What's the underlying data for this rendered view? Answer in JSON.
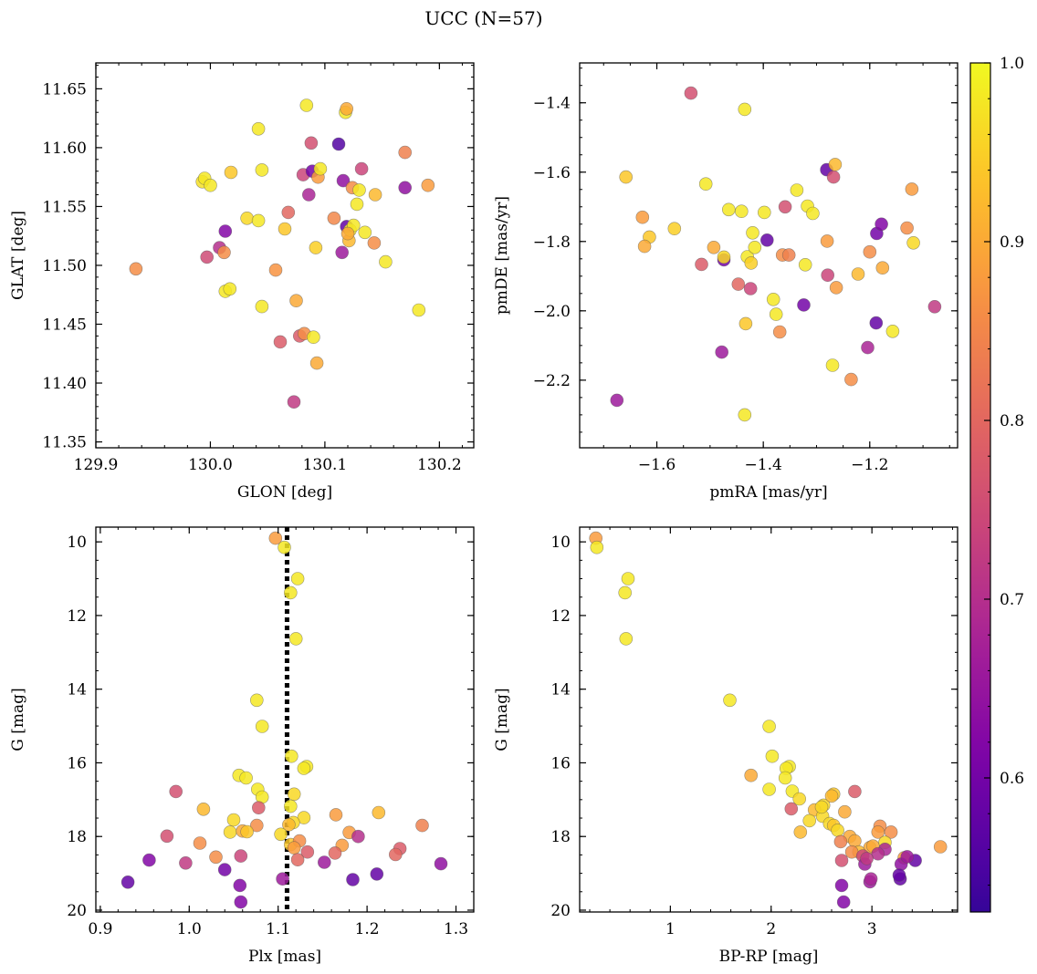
{
  "figure": {
    "title": "UCC (N=57)"
  },
  "chart_data": [
    {
      "type": "scatter",
      "xlabel": "GLON [deg]",
      "ylabel": "GLAT [deg]",
      "xlim": [
        129.9,
        130.23
      ],
      "ylim": [
        11.345,
        11.672
      ],
      "xticks": [
        129.9,
        130.0,
        130.1,
        130.2
      ],
      "yticks": [
        11.35,
        11.4,
        11.45,
        11.5,
        11.55,
        11.6,
        11.65
      ],
      "xtick_labels": [
        "129.9",
        "130.0",
        "130.1",
        "130.2"
      ],
      "ytick_labels": [
        "11.35",
        "11.40",
        "11.45",
        "11.50",
        "11.55",
        "11.60",
        "11.65"
      ],
      "xminor": 0.02,
      "yminor": 0.01,
      "invert_y": false,
      "points": [
        [
          129.935,
          11.497,
          0.86
        ],
        [
          129.993,
          11.571,
          0.97
        ],
        [
          129.995,
          11.574,
          0.98
        ],
        [
          130.0,
          11.568,
          0.98
        ],
        [
          129.997,
          11.507,
          0.75
        ],
        [
          130.008,
          11.515,
          0.7
        ],
        [
          130.013,
          11.529,
          0.62
        ],
        [
          130.012,
          11.511,
          0.86
        ],
        [
          130.013,
          11.478,
          0.98
        ],
        [
          130.017,
          11.48,
          0.98
        ],
        [
          130.018,
          11.579,
          0.94
        ],
        [
          130.032,
          11.54,
          0.96
        ],
        [
          130.042,
          11.538,
          0.98
        ],
        [
          130.042,
          11.616,
          0.98
        ],
        [
          130.045,
          11.581,
          0.98
        ],
        [
          130.045,
          11.465,
          0.98
        ],
        [
          130.057,
          11.496,
          0.87
        ],
        [
          130.061,
          11.435,
          0.78
        ],
        [
          130.065,
          11.531,
          0.94
        ],
        [
          130.068,
          11.545,
          0.8
        ],
        [
          130.073,
          11.384,
          0.72
        ],
        [
          130.075,
          11.47,
          0.9
        ],
        [
          130.078,
          11.44,
          0.78
        ],
        [
          130.082,
          11.442,
          0.86
        ],
        [
          130.081,
          11.577,
          0.74
        ],
        [
          130.084,
          11.636,
          0.98
        ],
        [
          130.086,
          11.56,
          0.68
        ],
        [
          130.088,
          11.604,
          0.76
        ],
        [
          130.089,
          11.58,
          0.6
        ],
        [
          130.09,
          11.439,
          0.98
        ],
        [
          130.092,
          11.515,
          0.95
        ],
        [
          130.093,
          11.417,
          0.9
        ],
        [
          130.094,
          11.575,
          0.88
        ],
        [
          130.096,
          11.582,
          0.98
        ],
        [
          130.112,
          11.603,
          0.56
        ],
        [
          130.115,
          11.511,
          0.66
        ],
        [
          130.116,
          11.572,
          0.64
        ],
        [
          130.118,
          11.63,
          0.98
        ],
        [
          130.119,
          11.633,
          0.9
        ],
        [
          130.119,
          11.533,
          0.58
        ],
        [
          130.121,
          11.521,
          0.92
        ],
        [
          130.122,
          11.53,
          0.98
        ],
        [
          130.124,
          11.566,
          0.86
        ],
        [
          130.125,
          11.534,
          0.98
        ],
        [
          130.128,
          11.552,
          0.98
        ],
        [
          130.13,
          11.564,
          0.98
        ],
        [
          130.132,
          11.582,
          0.74
        ],
        [
          130.135,
          11.528,
          0.98
        ],
        [
          130.143,
          11.519,
          0.86
        ],
        [
          130.144,
          11.56,
          0.92
        ],
        [
          130.153,
          11.503,
          0.98
        ],
        [
          130.17,
          11.566,
          0.64
        ],
        [
          130.17,
          11.596,
          0.84
        ],
        [
          130.182,
          11.462,
          0.98
        ],
        [
          130.19,
          11.568,
          0.88
        ],
        [
          130.12,
          11.527,
          0.9
        ],
        [
          130.108,
          11.54,
          0.85
        ]
      ]
    },
    {
      "type": "scatter",
      "xlabel": "pmRA [mas/yr]",
      "ylabel": "pmDE [mas/yr]",
      "xlim": [
        -1.745,
        -1.035
      ],
      "ylim": [
        -2.395,
        -1.285
      ],
      "xticks": [
        -1.6,
        -1.4,
        -1.2
      ],
      "yticks": [
        -2.2,
        -2.0,
        -1.8,
        -1.6,
        -1.4
      ],
      "xtick_labels": [
        "−1.6",
        "−1.4",
        "−1.2"
      ],
      "ytick_labels": [
        "−2.2",
        "−2.0",
        "−1.8",
        "−1.6",
        "−1.4"
      ],
      "xminor": 0.05,
      "yminor": 0.05,
      "invert_y": false,
      "points": [
        [
          -1.536,
          -1.372,
          0.76
        ],
        [
          -1.435,
          -1.419,
          0.98
        ],
        [
          -1.658,
          -1.614,
          0.94
        ],
        [
          -1.508,
          -1.634,
          0.98
        ],
        [
          -1.627,
          -1.73,
          0.88
        ],
        [
          -1.614,
          -1.787,
          0.94
        ],
        [
          -1.623,
          -1.814,
          0.9
        ],
        [
          -1.567,
          -1.763,
          0.95
        ],
        [
          -1.516,
          -1.866,
          0.78
        ],
        [
          -1.493,
          -1.817,
          0.9
        ],
        [
          -1.478,
          -2.119,
          0.66
        ],
        [
          -1.474,
          -1.853,
          0.6
        ],
        [
          -1.474,
          -1.845,
          0.96
        ],
        [
          -1.465,
          -1.708,
          0.98
        ],
        [
          -1.441,
          -1.713,
          0.98
        ],
        [
          -1.447,
          -1.923,
          0.8
        ],
        [
          -1.43,
          -1.844,
          0.98
        ],
        [
          -1.423,
          -1.862,
          0.95
        ],
        [
          -1.42,
          -1.775,
          0.98
        ],
        [
          -1.416,
          -1.817,
          0.98
        ],
        [
          -1.433,
          -2.037,
          0.94
        ],
        [
          -1.435,
          -2.3,
          0.98
        ],
        [
          -1.424,
          -1.936,
          0.74
        ],
        [
          -1.398,
          -1.716,
          0.98
        ],
        [
          -1.393,
          -1.796,
          0.58
        ],
        [
          -1.381,
          -1.967,
          0.98
        ],
        [
          -1.376,
          -2.01,
          0.98
        ],
        [
          -1.369,
          -2.061,
          0.86
        ],
        [
          -1.364,
          -1.839,
          0.86
        ],
        [
          -1.359,
          -1.7,
          0.76
        ],
        [
          -1.352,
          -1.839,
          0.84
        ],
        [
          -1.337,
          -1.652,
          0.98
        ],
        [
          -1.324,
          -1.983,
          0.6
        ],
        [
          -1.321,
          -1.867,
          0.98
        ],
        [
          -1.317,
          -1.698,
          0.98
        ],
        [
          -1.307,
          -1.719,
          0.98
        ],
        [
          -1.281,
          -1.593,
          0.58
        ],
        [
          -1.279,
          -1.897,
          0.74
        ],
        [
          -1.28,
          -1.799,
          0.88
        ],
        [
          -1.27,
          -2.157,
          0.98
        ],
        [
          -1.268,
          -1.614,
          0.76
        ],
        [
          -1.265,
          -1.578,
          0.92
        ],
        [
          -1.263,
          -1.933,
          0.88
        ],
        [
          -1.235,
          -2.198,
          0.86
        ],
        [
          -1.222,
          -1.894,
          0.92
        ],
        [
          -1.204,
          -2.106,
          0.68
        ],
        [
          -1.2,
          -1.83,
          0.86
        ],
        [
          -1.187,
          -1.777,
          0.6
        ],
        [
          -1.188,
          -2.035,
          0.58
        ],
        [
          -1.178,
          -1.75,
          0.62
        ],
        [
          -1.176,
          -1.876,
          0.9
        ],
        [
          -1.157,
          -2.059,
          0.98
        ],
        [
          -1.13,
          -1.761,
          0.86
        ],
        [
          -1.121,
          -1.649,
          0.88
        ],
        [
          -1.118,
          -1.804,
          0.96
        ],
        [
          -1.078,
          -1.988,
          0.72
        ],
        [
          -1.675,
          -2.258,
          0.66
        ]
      ]
    },
    {
      "type": "scatter",
      "xlabel": "Plx [mas]",
      "ylabel": "G [mag]",
      "xlim": [
        0.895,
        1.32
      ],
      "ylim": [
        9.6,
        20.05
      ],
      "xticks": [
        0.9,
        1.0,
        1.1,
        1.2,
        1.3
      ],
      "yticks": [
        10,
        12,
        14,
        16,
        18,
        20
      ],
      "xtick_labels": [
        "0.9",
        "1.0",
        "1.1",
        "1.2",
        "1.3"
      ],
      "ytick_labels": [
        "10",
        "12",
        "14",
        "16",
        "18",
        "20"
      ],
      "xminor": 0.02,
      "yminor": 0.5,
      "invert_y": true,
      "vline": 1.11,
      "points": [
        [
          1.097,
          9.9,
          0.88
        ],
        [
          1.107,
          10.15,
          0.98
        ],
        [
          1.122,
          11.0,
          0.98
        ],
        [
          1.114,
          11.38,
          0.98
        ],
        [
          1.12,
          12.63,
          0.98
        ],
        [
          1.076,
          14.3,
          0.98
        ],
        [
          1.082,
          15.01,
          0.98
        ],
        [
          1.115,
          15.82,
          0.98
        ],
        [
          1.132,
          16.1,
          0.98
        ],
        [
          1.129,
          16.15,
          0.98
        ],
        [
          1.056,
          16.34,
          0.98
        ],
        [
          1.064,
          16.41,
          0.98
        ],
        [
          1.077,
          16.72,
          0.98
        ],
        [
          1.082,
          16.93,
          0.98
        ],
        [
          1.118,
          16.85,
          0.96
        ],
        [
          0.985,
          16.78,
          0.76
        ],
        [
          1.016,
          17.26,
          0.92
        ],
        [
          1.078,
          17.22,
          0.78
        ],
        [
          1.114,
          17.18,
          0.98
        ],
        [
          1.165,
          17.41,
          0.88
        ],
        [
          1.213,
          17.35,
          0.92
        ],
        [
          1.05,
          17.55,
          0.96
        ],
        [
          1.129,
          17.49,
          0.96
        ],
        [
          1.117,
          17.62,
          0.96
        ],
        [
          1.112,
          17.68,
          0.92
        ],
        [
          1.262,
          17.7,
          0.84
        ],
        [
          1.076,
          17.7,
          0.86
        ],
        [
          1.046,
          17.88,
          0.96
        ],
        [
          1.06,
          17.85,
          0.9
        ],
        [
          1.065,
          17.87,
          0.94
        ],
        [
          1.103,
          17.94,
          0.96
        ],
        [
          1.18,
          17.89,
          0.88
        ],
        [
          0.975,
          17.99,
          0.76
        ],
        [
          1.012,
          18.18,
          0.86
        ],
        [
          1.114,
          18.22,
          0.94
        ],
        [
          1.124,
          18.12,
          0.86
        ],
        [
          1.118,
          18.31,
          0.88
        ],
        [
          1.172,
          18.24,
          0.88
        ],
        [
          1.133,
          18.42,
          0.78
        ],
        [
          1.164,
          18.45,
          0.8
        ],
        [
          1.03,
          18.56,
          0.86
        ],
        [
          1.058,
          18.53,
          0.74
        ],
        [
          1.122,
          18.63,
          0.8
        ],
        [
          1.237,
          18.33,
          0.78
        ],
        [
          1.232,
          18.49,
          0.8
        ],
        [
          0.955,
          18.64,
          0.62
        ],
        [
          0.996,
          18.72,
          0.72
        ],
        [
          1.283,
          18.74,
          0.64
        ],
        [
          1.211,
          19.02,
          0.58
        ],
        [
          1.184,
          19.17,
          0.58
        ],
        [
          1.105,
          19.15,
          0.66
        ],
        [
          0.931,
          19.24,
          0.58
        ],
        [
          1.057,
          19.33,
          0.62
        ],
        [
          1.058,
          19.78,
          0.62
        ],
        [
          1.152,
          18.7,
          0.66
        ],
        [
          1.04,
          18.9,
          0.6
        ],
        [
          1.19,
          18.0,
          0.7
        ]
      ]
    },
    {
      "type": "scatter",
      "xlabel": "BP-RP [mag]",
      "ylabel": "G [mag]",
      "xlim": [
        0.1,
        3.85
      ],
      "ylim": [
        9.6,
        20.05
      ],
      "xticks": [
        1,
        2,
        3
      ],
      "yticks": [
        10,
        12,
        14,
        16,
        18,
        20
      ],
      "xtick_labels": [
        "1",
        "2",
        "3"
      ],
      "ytick_labels": [
        "10",
        "12",
        "14",
        "16",
        "18",
        "20"
      ],
      "xminor": 0.2,
      "yminor": 0.5,
      "invert_y": true,
      "points": [
        [
          0.26,
          9.9,
          0.88
        ],
        [
          0.27,
          10.15,
          0.98
        ],
        [
          0.58,
          11.0,
          0.98
        ],
        [
          0.55,
          11.38,
          0.98
        ],
        [
          0.56,
          12.63,
          0.98
        ],
        [
          1.59,
          14.3,
          0.98
        ],
        [
          1.98,
          15.01,
          0.98
        ],
        [
          2.01,
          15.82,
          0.98
        ],
        [
          2.18,
          16.1,
          0.98
        ],
        [
          2.15,
          16.15,
          0.98
        ],
        [
          1.8,
          16.34,
          0.9
        ],
        [
          2.14,
          16.41,
          0.98
        ],
        [
          2.62,
          16.85,
          0.94
        ],
        [
          2.21,
          16.77,
          0.98
        ],
        [
          1.98,
          16.72,
          0.98
        ],
        [
          2.28,
          16.98,
          0.96
        ],
        [
          2.83,
          16.78,
          0.78
        ],
        [
          2.2,
          17.25,
          0.78
        ],
        [
          2.52,
          17.15,
          0.96
        ],
        [
          2.73,
          17.33,
          0.9
        ],
        [
          2.43,
          17.28,
          0.92
        ],
        [
          2.38,
          17.57,
          0.96
        ],
        [
          2.51,
          17.45,
          0.96
        ],
        [
          2.58,
          17.65,
          0.96
        ],
        [
          2.62,
          17.7,
          0.94
        ],
        [
          2.66,
          17.83,
          0.96
        ],
        [
          2.78,
          18.0,
          0.9
        ],
        [
          2.29,
          17.88,
          0.92
        ],
        [
          3.08,
          17.72,
          0.86
        ],
        [
          3.06,
          17.88,
          0.88
        ],
        [
          3.19,
          17.88,
          0.86
        ],
        [
          2.83,
          18.12,
          0.9
        ],
        [
          2.98,
          18.3,
          0.9
        ],
        [
          3.13,
          18.16,
          0.96
        ],
        [
          2.69,
          18.14,
          0.84
        ],
        [
          2.87,
          18.42,
          0.92
        ],
        [
          2.8,
          18.42,
          0.86
        ],
        [
          2.91,
          18.53,
          0.74
        ],
        [
          3.01,
          18.26,
          0.9
        ],
        [
          3.32,
          18.58,
          0.88
        ],
        [
          3.13,
          18.35,
          0.68
        ],
        [
          3.06,
          18.47,
          0.7
        ],
        [
          2.7,
          18.65,
          0.76
        ],
        [
          2.93,
          18.75,
          0.66
        ],
        [
          3.29,
          18.75,
          0.64
        ],
        [
          3.43,
          18.65,
          0.58
        ],
        [
          3.68,
          18.28,
          0.88
        ],
        [
          3.28,
          19.15,
          0.58
        ],
        [
          3.27,
          19.05,
          0.58
        ],
        [
          2.98,
          19.23,
          0.66
        ],
        [
          2.99,
          19.15,
          0.68
        ],
        [
          2.7,
          19.33,
          0.62
        ],
        [
          2.72,
          19.78,
          0.62
        ],
        [
          3.35,
          18.55,
          0.66
        ],
        [
          2.95,
          18.6,
          0.72
        ],
        [
          2.5,
          17.2,
          0.96
        ],
        [
          2.6,
          16.9,
          0.92
        ]
      ]
    }
  ],
  "colorbar": {
    "cmap": "plasma",
    "vmin": 0.525,
    "vmax": 1.0,
    "ticks": [
      0.6,
      0.7,
      0.8,
      0.9,
      1.0
    ],
    "tick_labels": [
      "0.6",
      "0.7",
      "0.8",
      "0.9",
      "1.0"
    ],
    "minor": 0.02
  }
}
